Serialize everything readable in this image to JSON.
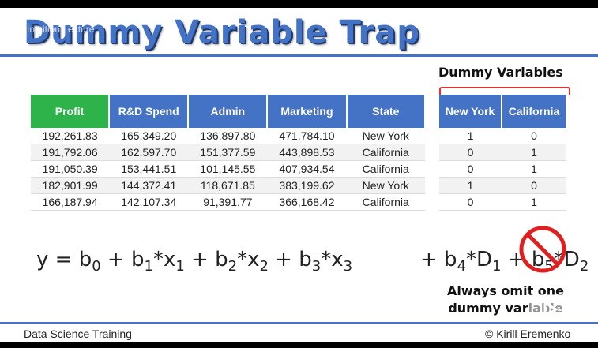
{
  "title": "Dummy Variable Trap",
  "overlay_text": "Intuition Lecture",
  "dummy_label": "Dummy Variables",
  "table": {
    "headers": [
      "Profit",
      "R&D Spend",
      "Admin",
      "Marketing",
      "State"
    ],
    "rows": [
      [
        "192,261.83",
        "165,349.20",
        "136,897.80",
        "471,784.10",
        "New York"
      ],
      [
        "191,792.06",
        "162,597.70",
        "151,377.59",
        "443,898.53",
        "California"
      ],
      [
        "191,050.39",
        "153,441.51",
        "101,145.55",
        "407,934.54",
        "California"
      ],
      [
        "182,901.99",
        "144,372.41",
        "118,671.85",
        "383,199.62",
        "New York"
      ],
      [
        "166,187.94",
        "142,107.34",
        "91,391.77",
        "366,168.42",
        "California"
      ]
    ]
  },
  "dummy_table": {
    "headers": [
      "New York",
      "California"
    ],
    "rows": [
      [
        "1",
        "0"
      ],
      [
        "0",
        "1"
      ],
      [
        "0",
        "1"
      ],
      [
        "1",
        "0"
      ],
      [
        "0",
        "1"
      ]
    ]
  },
  "equation": {
    "left": [
      {
        "text": "y = b",
        "sub": "0"
      },
      {
        "text": " + b",
        "sub": "1"
      },
      {
        "text": "*x",
        "sub": "1"
      },
      {
        "text": " + b",
        "sub": "2"
      },
      {
        "text": "*x",
        "sub": "2"
      },
      {
        "text": " + b",
        "sub": "3"
      },
      {
        "text": "*x",
        "sub": "3"
      }
    ],
    "right": [
      {
        "text": "+ b",
        "sub": "4"
      },
      {
        "text": "*D",
        "sub": "1"
      },
      {
        "text": " + b",
        "sub": "5"
      },
      {
        "text": "*D",
        "sub": "2"
      }
    ]
  },
  "omit_note": [
    "Always omit one",
    "dummy variable"
  ],
  "footer": {
    "left": "Data Science Training",
    "right": "© Kirill Eremenko"
  },
  "colors": {
    "accent": "#4472c4",
    "profit_header": "#2eb34a",
    "bracket": "#dd3333",
    "prohibit": "#e02020"
  },
  "icons": {
    "prohibit": "no-sign-icon",
    "play": "play-icon"
  }
}
